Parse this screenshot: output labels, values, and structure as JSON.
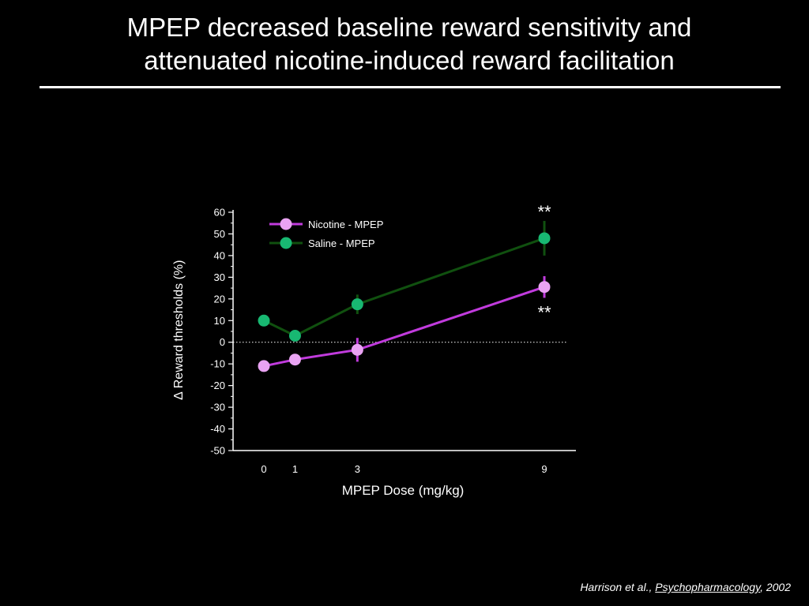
{
  "slide": {
    "title_line1": "MPEP decreased baseline reward sensitivity and",
    "title_line2": "attenuated nicotine-induced reward facilitation"
  },
  "citation": {
    "authors": "Harrison et al., ",
    "journal": "Psychopharmacology",
    "year": ", 2002"
  },
  "chart_data": {
    "type": "line",
    "title": "",
    "xlabel": "MPEP Dose (mg/kg)",
    "ylabel": "∆ Reward thresholds (%)",
    "x": [
      0,
      1,
      3,
      9
    ],
    "x_tick_labels": [
      "0",
      "1",
      "3",
      "9"
    ],
    "ylim": [
      -50,
      60
    ],
    "y_ticks": [
      60,
      50,
      40,
      30,
      20,
      10,
      0,
      -10,
      -20,
      -30,
      -40,
      -50
    ],
    "grid": false,
    "zero_reference_line": "dotted",
    "legend_position": "top-left",
    "series": [
      {
        "name": "Nicotine - MPEP",
        "color": "#c13bdd",
        "marker_color": "#e9a3f2",
        "values": [
          -11,
          -8,
          -3.5,
          25.5
        ],
        "error": [
          null,
          null,
          5.5,
          5
        ]
      },
      {
        "name": "Saline - MPEP",
        "color": "#10500f",
        "marker_color": "#18b872",
        "values": [
          10,
          3,
          17.5,
          48
        ],
        "error": [
          null,
          null,
          4.5,
          8
        ]
      }
    ],
    "annotations": [
      {
        "text": "**",
        "x": 9,
        "series": "Saline - MPEP",
        "position": "above"
      },
      {
        "text": "**",
        "x": 9,
        "series": "Nicotine - MPEP",
        "position": "below"
      }
    ]
  }
}
